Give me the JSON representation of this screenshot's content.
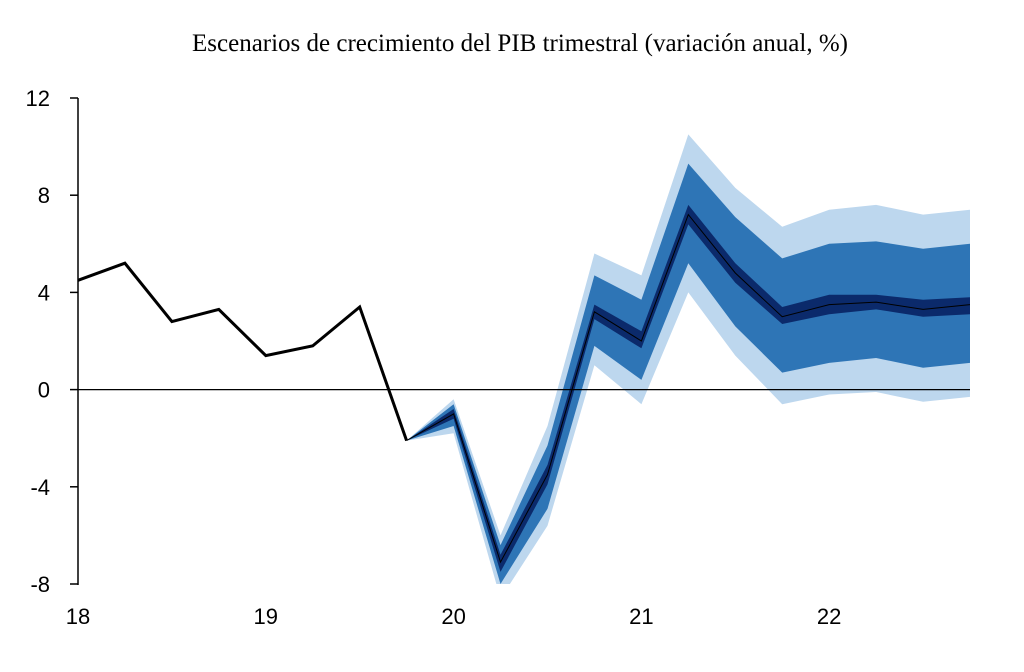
{
  "chart_data": {
    "type": "area",
    "title": "Escenarios de crecimiento del PIB trimestral  (variación anual, %)",
    "xlabel": "",
    "ylabel": "",
    "ylim": [
      -8,
      12
    ],
    "yticks": [
      12,
      8,
      4,
      0,
      -4,
      -8
    ],
    "xlim": [
      2018.0,
      2022.75
    ],
    "xticks": [
      {
        "value": 2018,
        "label": "18"
      },
      {
        "value": 2019,
        "label": "19"
      },
      {
        "value": 2020,
        "label": "20"
      },
      {
        "value": 2021,
        "label": "21"
      },
      {
        "value": 2022,
        "label": "22"
      }
    ],
    "legend": "none",
    "grid": false,
    "zero_line": true,
    "series": [
      {
        "x": [
          2018.0,
          2018.25,
          2018.5,
          2018.75,
          2019.0,
          2019.25,
          2019.5,
          2019.75
        ],
        "values": [
          4.5,
          5.2,
          2.8,
          3.3,
          1.4,
          1.8,
          3.4,
          -2.1
        ]
      }
    ],
    "fan": {
      "x": [
        2019.75,
        2020.0,
        2020.25,
        2020.5,
        2020.75,
        2021.0,
        2021.25,
        2021.5,
        2021.75,
        2022.0,
        2022.25,
        2022.5,
        2022.75
      ],
      "center": [
        -2.1,
        -1.0,
        -7.1,
        -3.5,
        3.2,
        2.0,
        7.2,
        4.8,
        3.0,
        3.5,
        3.6,
        3.3,
        3.5
      ],
      "bands": [
        {
          "color": "#bdd7ee",
          "upper": [
            -2.1,
            -0.4,
            -6.0,
            -1.5,
            5.6,
            4.7,
            10.5,
            8.3,
            6.7,
            7.4,
            7.6,
            7.2,
            7.4
          ],
          "lower": [
            -2.1,
            -1.8,
            -8.6,
            -5.6,
            1.0,
            -0.6,
            4.0,
            1.4,
            -0.6,
            -0.2,
            -0.1,
            -0.5,
            -0.3
          ]
        },
        {
          "color": "#2e75b6",
          "upper": [
            -2.1,
            -0.6,
            -6.4,
            -2.3,
            4.7,
            3.7,
            9.3,
            7.1,
            5.4,
            6.0,
            6.1,
            5.8,
            6.0
          ],
          "lower": [
            -2.1,
            -1.5,
            -8.0,
            -4.9,
            1.8,
            0.4,
            5.2,
            2.6,
            0.7,
            1.1,
            1.3,
            0.9,
            1.1
          ]
        },
        {
          "color": "#0b2a6b",
          "upper": [
            -2.1,
            -0.8,
            -6.8,
            -3.1,
            3.5,
            2.4,
            7.6,
            5.2,
            3.4,
            3.9,
            3.9,
            3.7,
            3.8
          ],
          "lower": [
            -2.1,
            -1.2,
            -7.5,
            -3.9,
            2.9,
            1.7,
            6.8,
            4.4,
            2.7,
            3.1,
            3.3,
            3.0,
            3.1
          ]
        }
      ]
    }
  },
  "colors": {
    "line": "#000000",
    "axis": "#000000"
  }
}
